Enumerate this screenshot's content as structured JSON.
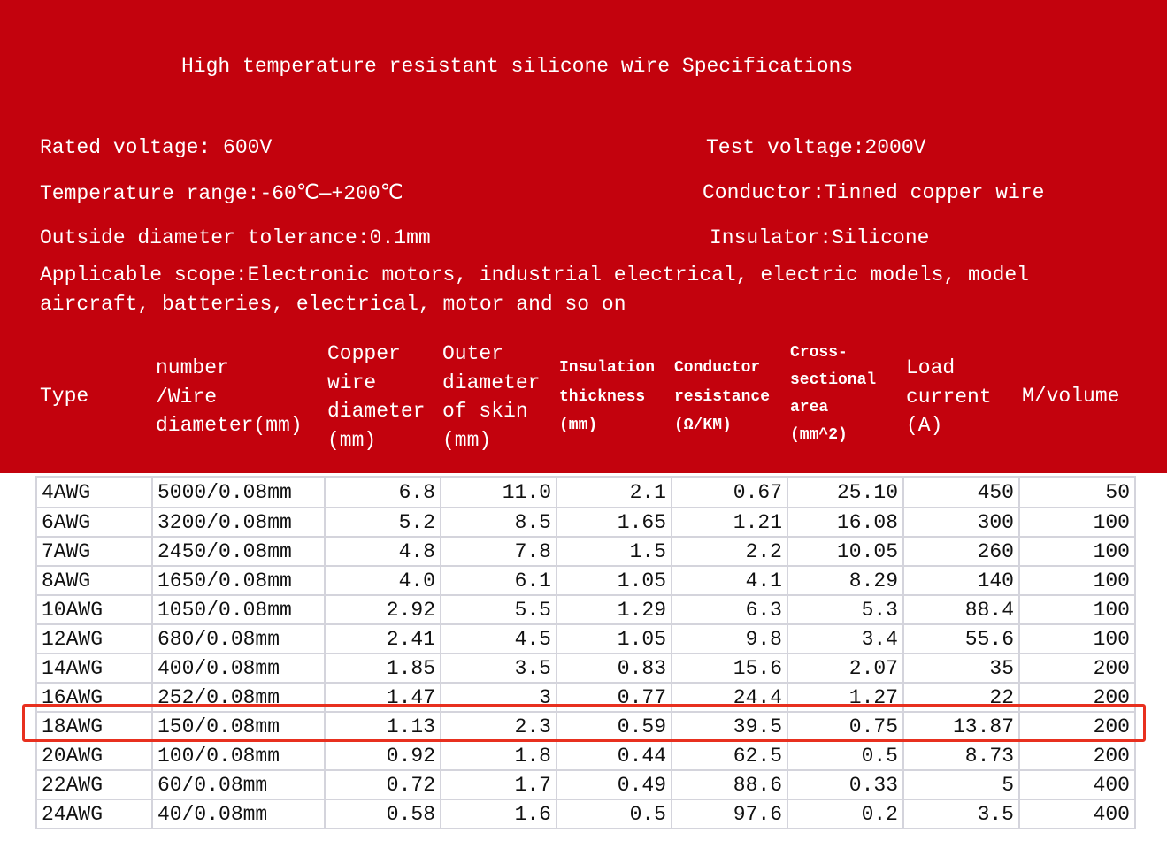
{
  "title": "High temperature resistant silicone wire Specifications",
  "specs": {
    "rated_voltage": "Rated voltage: 600V",
    "test_voltage": "Test voltage:2000V",
    "temperature_range": "Temperature range:-60℃—+200℃",
    "conductor": "Conductor:Tinned copper wire",
    "outside_diameter": "Outside diameter tolerance:0.1mm",
    "insulator": "Insulator:Silicone",
    "scope_line1": "Applicable scope:Electronic motors, industrial electrical, electric models, model",
    "scope_line2": "aircraft, batteries, electrical, motor and so on"
  },
  "headers": [
    "Type",
    "number\n/Wire\ndiameter(mm)",
    "Copper\nwire\ndiameter\n(mm)",
    "Outer\ndiameter\nof skin\n(mm)",
    "Insulation\nthickness\n(mm)",
    "Conductor\nresistance\n(Ω/KM)",
    "Cross-\nsectional\narea\n(mm^2)",
    "Load\ncurrent\n(A)",
    "M/volume"
  ],
  "rows": [
    [
      "4AWG",
      "5000/0.08mm",
      "6.8",
      "11.0",
      "2.1",
      "0.67",
      "25.10",
      "450",
      "50"
    ],
    [
      "6AWG",
      "3200/0.08mm",
      "5.2",
      "8.5",
      "1.65",
      "1.21",
      "16.08",
      "300",
      "100"
    ],
    [
      "7AWG",
      "2450/0.08mm",
      "4.8",
      "7.8",
      "1.5",
      "2.2",
      "10.05",
      "260",
      "100"
    ],
    [
      "8AWG",
      "1650/0.08mm",
      "4.0",
      "6.1",
      "1.05",
      "4.1",
      "8.29",
      "140",
      "100"
    ],
    [
      "10AWG",
      "1050/0.08mm",
      "2.92",
      "5.5",
      "1.29",
      "6.3",
      "5.3",
      "88.4",
      "100"
    ],
    [
      "12AWG",
      "680/0.08mm",
      "2.41",
      "4.5",
      "1.05",
      "9.8",
      "3.4",
      "55.6",
      "100"
    ],
    [
      "14AWG",
      "400/0.08mm",
      "1.85",
      "3.5",
      "0.83",
      "15.6",
      "2.07",
      "35",
      "200"
    ],
    [
      "16AWG",
      "252/0.08mm",
      "1.47",
      "3",
      "0.77",
      "24.4",
      "1.27",
      "22",
      "200"
    ],
    [
      "18AWG",
      "150/0.08mm",
      "1.13",
      "2.3",
      "0.59",
      "39.5",
      "0.75",
      "13.87",
      "200"
    ],
    [
      "20AWG",
      "100/0.08mm",
      "0.92",
      "1.8",
      "0.44",
      "62.5",
      "0.5",
      "8.73",
      "200"
    ],
    [
      "22AWG",
      "60/0.08mm",
      "0.72",
      "1.7",
      "0.49",
      "88.6",
      "0.33",
      "5",
      "400"
    ],
    [
      "24AWG",
      "40/0.08mm",
      "0.58",
      "1.6",
      "0.5",
      "97.6",
      "0.2",
      "3.5",
      "400"
    ]
  ],
  "highlighted_row": "18AWG",
  "colors": {
    "banner": "#c3020d",
    "highlight": "#e8301f"
  }
}
